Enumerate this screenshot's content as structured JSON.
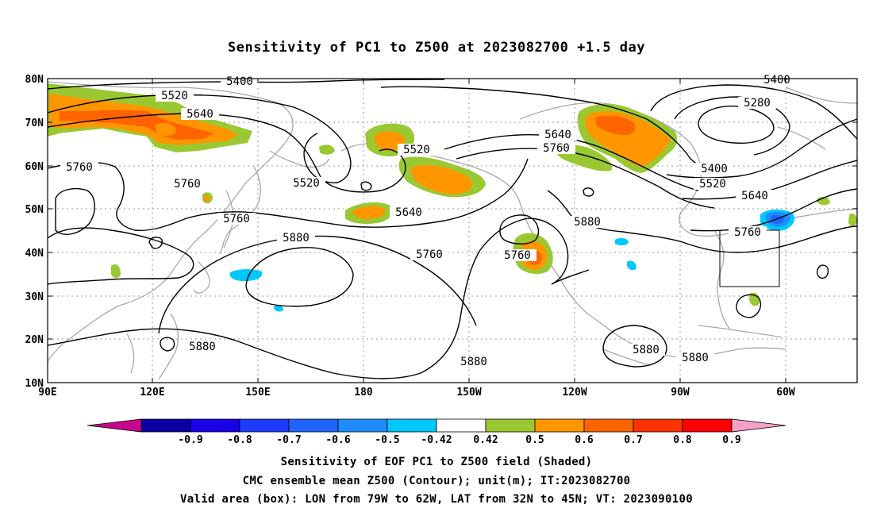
{
  "title": "Sensitivity of PC1 to Z500 at 2023082700 +1.5 day",
  "map": {
    "lat_ticks": [
      "80N",
      "70N",
      "60N",
      "50N",
      "40N",
      "30N",
      "20N",
      "10N"
    ],
    "lon_ticks": [
      "90E",
      "120E",
      "150E",
      "180",
      "150W",
      "120W",
      "90W",
      "60W"
    ],
    "contour_labels": [
      {
        "id": "c5400a",
        "text": "5400"
      },
      {
        "id": "c5400b",
        "text": "5400"
      },
      {
        "id": "c5520a",
        "text": "5520"
      },
      {
        "id": "c5640a",
        "text": "5640"
      },
      {
        "id": "c5760a",
        "text": "5760"
      },
      {
        "id": "c5760b",
        "text": "5760"
      },
      {
        "id": "c5760c",
        "text": "5760"
      },
      {
        "id": "c5520b",
        "text": "5520"
      },
      {
        "id": "c5520c",
        "text": "5520"
      },
      {
        "id": "c5640b",
        "text": "5640"
      },
      {
        "id": "c5880a",
        "text": "5880"
      },
      {
        "id": "c5760d",
        "text": "5760"
      },
      {
        "id": "c5760e",
        "text": "5760"
      },
      {
        "id": "c5880b",
        "text": "5880"
      },
      {
        "id": "c5640c",
        "text": "5640"
      },
      {
        "id": "c5760f",
        "text": "5760"
      },
      {
        "id": "c5280",
        "text": "5280"
      },
      {
        "id": "c5400c",
        "text": "5400"
      },
      {
        "id": "c5520d",
        "text": "5520"
      },
      {
        "id": "c5640d",
        "text": "5640"
      },
      {
        "id": "c5760g",
        "text": "5760"
      },
      {
        "id": "c5880c",
        "text": "5880"
      },
      {
        "id": "c5880d",
        "text": "5880"
      },
      {
        "id": "c5880e",
        "text": "5880"
      },
      {
        "id": "c5880f",
        "text": "5880"
      }
    ]
  },
  "colorbar": {
    "labels": [
      "-0.9",
      "-0.8",
      "-0.7",
      "-0.6",
      "-0.5",
      "-0.42",
      "0.42",
      "0.5",
      "0.6",
      "0.7",
      "0.8",
      "0.9"
    ],
    "low_color": "#c8068c",
    "high_color": "#f5a0c8",
    "colors": [
      "#0a00a0",
      "#1a00e6",
      "#1e3cff",
      "#1e64ff",
      "#1e8cff",
      "#00c8ff",
      "#ffffff",
      "#9ac832",
      "#ff9600",
      "#ff6400",
      "#ff3200",
      "#ff0000"
    ]
  },
  "captions": {
    "line1": "Sensitivity of EOF PC1 to Z500 field (Shaded)",
    "line2": "CMC ensemble mean Z500 (Contour); unit(m); IT:2023082700",
    "line3": "Valid area (box): LON from 79W to 62W, LAT from 32N to 45N; VT: 2023090100"
  }
}
